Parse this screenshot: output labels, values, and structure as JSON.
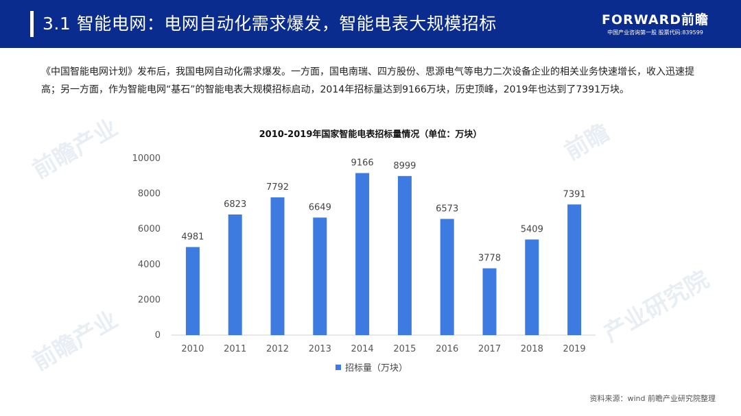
{
  "header": {
    "title": "3.1 智能电网：电网自动化需求爆发，智能电表大规模招标",
    "brand_logo": "FORWARD前瞻",
    "brand_tagline": "中国产业咨询第一股 股票代码:839599"
  },
  "intro": "《中国智能电网计划》发布后，我国电网自动化需求爆发。一方面，国电南瑞、四方股份、思源电气等电力二次设备企业的相关业务快速增长，收入迅速提高；另一方面，作为智能电网“基石”的智能电表大规模招标启动，2014年招标量达到9166万块，历史顶峰，2019年也达到了7391万块。",
  "watermarks": [
    "前瞻产业",
    "前瞻产业",
    "前瞻产业",
    "前瞻",
    "产业研究院"
  ],
  "chart_data": {
    "type": "bar",
    "title": "2010-2019年国家智能电表招标量情况（单位：万块）",
    "categories": [
      "2010",
      "2011",
      "2012",
      "2013",
      "2014",
      "2015",
      "2016",
      "2017",
      "2018",
      "2019"
    ],
    "series": [
      {
        "name": "招标量（万块）",
        "values": [
          4981,
          6823,
          7792,
          6649,
          9166,
          8999,
          6573,
          3778,
          5409,
          7391
        ]
      }
    ],
    "yticks": [
      "0",
      "2000",
      "4000",
      "6000",
      "8000",
      "10000"
    ],
    "ylim": [
      0,
      10000
    ],
    "grid": false,
    "legend": "bottom-center",
    "bar_color": "#3d7be0",
    "axis_color": "#cfcfcf"
  },
  "source": "资料来源：wind 前瞻产业研究院整理"
}
